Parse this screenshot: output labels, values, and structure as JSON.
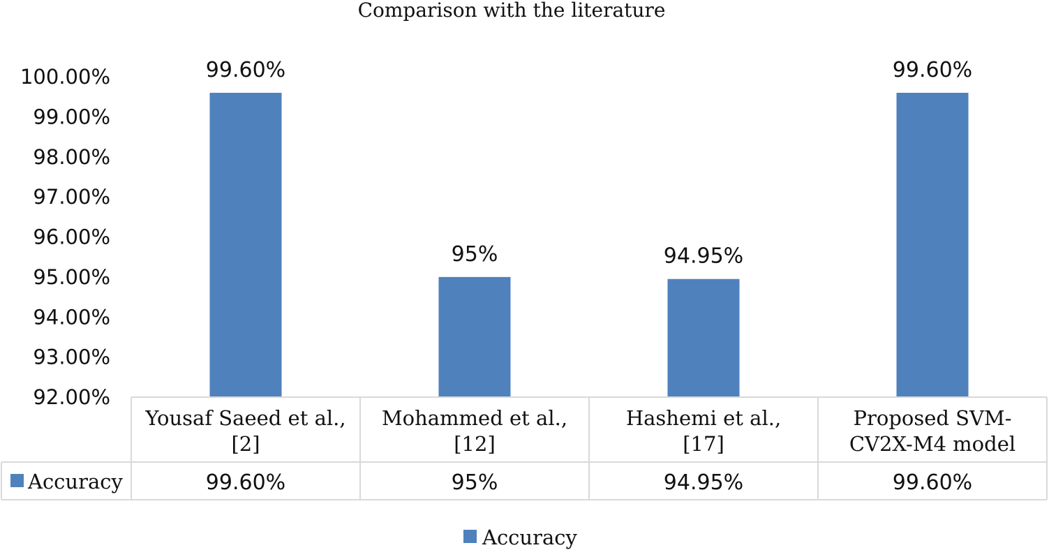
{
  "chart_data": {
    "type": "bar",
    "title": "Comparison with the literature",
    "categories": [
      [
        "Yousaf Saeed et al.,",
        "[2]"
      ],
      [
        "Mohammed et al.,",
        "[12]"
      ],
      [
        "Hashemi et al.,",
        "[17]"
      ],
      [
        "Proposed  SVM-",
        "CV2X-M4 model"
      ]
    ],
    "series": [
      {
        "name": "Accuracy",
        "values": [
          99.6,
          95.0,
          94.95,
          99.6
        ],
        "data_labels": [
          "99.60%",
          "95%",
          "94.95%",
          "99.60%"
        ],
        "color": "#4f81bd"
      }
    ],
    "yticks": [
      "92.00%",
      "93.00%",
      "94.00%",
      "95.00%",
      "96.00%",
      "97.00%",
      "98.00%",
      "99.00%",
      "100.00%"
    ],
    "ylim": [
      92,
      100
    ],
    "xlabel": "",
    "ylabel": "",
    "grid": false,
    "data_table": true,
    "legend": {
      "position": "bottom",
      "label": "Accuracy"
    }
  }
}
